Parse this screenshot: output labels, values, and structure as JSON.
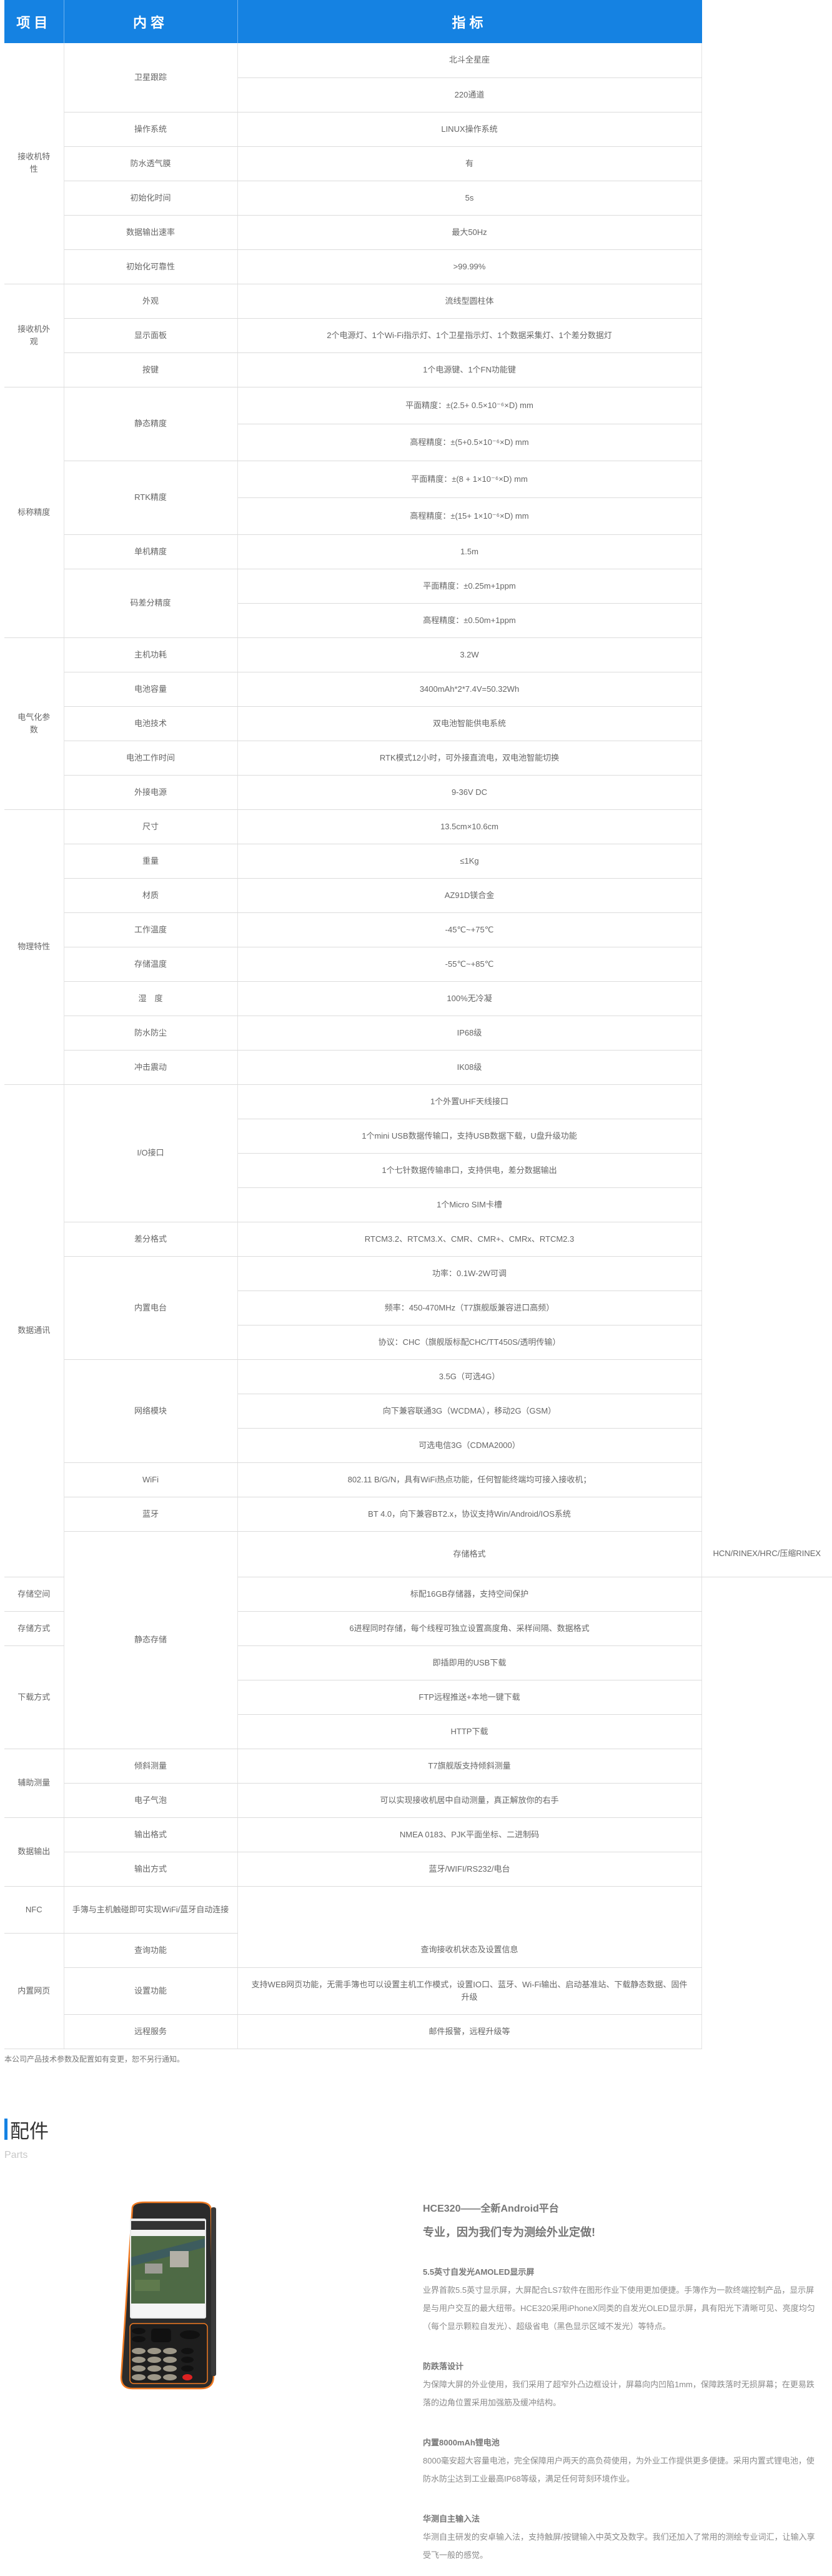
{
  "table": {
    "header": [
      "项目",
      "内容",
      "指标"
    ],
    "groups": [
      {
        "label": "接收机特性",
        "items": [
          {
            "label": "卫星跟踪",
            "values": [
              "北斗全星座",
              "220通道"
            ]
          },
          {
            "label": "操作系统",
            "values": [
              "LINUX操作系统"
            ]
          },
          {
            "label": "防水透气膜",
            "values": [
              "有"
            ]
          },
          {
            "label": "初始化时间",
            "values": [
              "5s"
            ]
          },
          {
            "label": "数据输出速率",
            "values": [
              "最大50Hz"
            ]
          },
          {
            "label": "初始化可靠性",
            "values": [
              ">99.99%"
            ]
          }
        ]
      },
      {
        "label": "接收机外观",
        "items": [
          {
            "label": "外观",
            "values": [
              "流线型圆柱体"
            ]
          },
          {
            "label": "显示面板",
            "values": [
              "2个电源灯、1个Wi-Fi指示灯、1个卫星指示灯、1个数据采集灯、1个差分数据灯"
            ]
          },
          {
            "label": "按键",
            "values": [
              "1个电源键、1个FN功能键"
            ]
          }
        ]
      },
      {
        "label": "标称精度",
        "items": [
          {
            "label": "静态精度",
            "values": [
              "平面精度：±(2.5+ 0.5×10⁻⁶×D) mm",
              "高程精度：±(5+0.5×10⁻⁶×D) mm"
            ]
          },
          {
            "label": "RTK精度",
            "values": [
              "平面精度：±(8 + 1×10⁻⁶×D) mm",
              "高程精度：±(15+ 1×10⁻⁶×D) mm"
            ]
          },
          {
            "label": "单机精度",
            "values": [
              "1.5m"
            ]
          },
          {
            "label": "码差分精度",
            "values": [
              "平面精度：±0.25m+1ppm",
              "高程精度：±0.50m+1ppm"
            ]
          }
        ]
      },
      {
        "label": "电气化参数",
        "items": [
          {
            "label": "主机功耗",
            "values": [
              "3.2W"
            ]
          },
          {
            "label": "电池容量",
            "values": [
              "3400mAh*2*7.4V=50.32Wh"
            ]
          },
          {
            "label": "电池技术",
            "values": [
              "双电池智能供电系统"
            ]
          },
          {
            "label": "电池工作时间",
            "values": [
              "RTK模式12小时，可外接直流电，双电池智能切换"
            ]
          },
          {
            "label": "外接电源",
            "values": [
              "9-36V DC"
            ]
          }
        ]
      },
      {
        "label": "物理特性",
        "items": [
          {
            "label": "尺寸",
            "values": [
              "13.5cm×10.6cm"
            ]
          },
          {
            "label": "重量",
            "values": [
              "≤1Kg"
            ]
          },
          {
            "label": "材质",
            "values": [
              "AZ91D镁合金"
            ]
          },
          {
            "label": "工作温度",
            "values": [
              "-45℃~+75℃"
            ]
          },
          {
            "label": "存储温度",
            "values": [
              "-55℃~+85℃"
            ]
          },
          {
            "label": "湿　度",
            "values": [
              "100%无冷凝"
            ]
          },
          {
            "label": "防水防尘",
            "values": [
              "IP68级"
            ]
          },
          {
            "label": "冲击震动",
            "values": [
              "IK08级"
            ]
          }
        ]
      },
      {
        "label": "数据通讯",
        "items": [
          {
            "label": "I/O接口",
            "values": [
              "1个外置UHF天线接口",
              "1个mini USB数据传输口，支持USB数据下载，U盘升级功能",
              "1个七针数据传输串口，支持供电，差分数据输出",
              "1个Micro SIM卡槽"
            ]
          },
          {
            "label": "差分格式",
            "values": [
              "RTCM3.2、RTCM3.X、CMR、CMR+、CMRx、RTCM2.3"
            ]
          },
          {
            "label": "内置电台",
            "values": [
              "功率：0.1W-2W可调",
              "频率：450-470MHz（T7旗舰版兼容进口高频）",
              "协议：CHC（旗舰版标配CHC/TT450S/透明传输）"
            ]
          },
          {
            "label": "网络模块",
            "values": [
              "3.5G（可选4G）",
              "向下兼容联通3G（WCDMA），移动2G（GSM）",
              "可选电信3G（CDMA2000）"
            ]
          },
          {
            "label": "WiFi",
            "values": [
              "802.11 B/G/N，具有WiFi热点功能，任何智能终端均可接入接收机；"
            ]
          },
          {
            "label": "蓝牙",
            "values": [
              "BT 4.0，向下兼容BT2.x，协议支持Win/Android/IOS系统"
            ]
          },
          {
            "label": "静态存储",
            "values": [
              "存储格式"
            ],
            "extra": "HCN/RINEX/HRC/压缩RINEX"
          }
        ]
      },
      {
        "label": "存储空间",
        "values": [
          "标配16GB存储器，支持空间保护"
        ]
      },
      {
        "label": "存储方式",
        "values": [
          "6进程同时存储，每个线程可独立设置高度角、采样间隔、数据格式"
        ]
      },
      {
        "label": "下载方式",
        "values": [
          "即插即用的USB下载",
          "FTP远程推送+本地一键下载",
          "HTTP下载"
        ]
      },
      {
        "label": "辅助测量",
        "items": [
          {
            "label": "倾斜测量",
            "values": [
              "T7旗舰版支持倾斜测量"
            ]
          },
          {
            "label": "电子气泡",
            "values": [
              "可以实现接收机居中自动测量，真正解放你的右手"
            ]
          }
        ]
      },
      {
        "label": "数据输出",
        "items": [
          {
            "label": "输出格式",
            "values": [
              "NMEA 0183、PJK平面坐标、二进制码"
            ]
          },
          {
            "label": "输出方式",
            "values": [
              "蓝牙/WIFI/RS232/电台"
            ]
          }
        ]
      },
      {
        "label": "NFC",
        "items": [
          {
            "label": "手簿与主机触碰即可实现WiFi/蓝牙自动连接",
            "values": [
              ""
            ]
          }
        ]
      },
      {
        "label": "内置网页",
        "items": [
          {
            "label": "查询功能",
            "values": [
              "查询接收机状态及设置信息"
            ]
          },
          {
            "label": "设置功能",
            "values": [
              "支持WEB网页功能，无需手簿也可以设置主机工作模式，设置IO口、蓝牙、Wi-Fi输出、启动基准站、下载静态数据、固件升级"
            ]
          },
          {
            "label": "远程服务",
            "values": [
              "邮件报警，远程升级等"
            ]
          }
        ]
      }
    ],
    "note": "本公司产品技术参数及配置如有变更，恕不另行通知。"
  },
  "parts": {
    "title": "配件",
    "subtitle": "Parts",
    "product_title": "HCE320——全新Android平台",
    "product_slogan": "专业，因为我们专为测绘外业定做!",
    "features": [
      {
        "heading": "5.5英寸自发光AMOLED显示屏",
        "text": "业界首款5.5英寸显示屏，大屏配合LS7软件在图形作业下使用更加便捷。手簿作为一款终端控制产品，显示屏是与用户交互的最大纽带。HCE320采用iPhoneX同类的自发光OLED显示屏，具有阳光下清晰可见、亮度均匀（每个显示颗粒自发光）、超级省电（黑色显示区域不发光）等特点。"
      },
      {
        "heading": "防跌落设计",
        "text": "为保障大屏的外业使用，我们采用了超窄外凸边框设计，屏幕向内凹陷1mm，保障跌落时无损屏幕；在更易跌落的边角位置采用加强筋及缓冲结构。"
      },
      {
        "heading": "内置8000mAh锂电池",
        "text": "8000毫安超大容量电池，完全保障用户两天的高负荷使用，为外业工作提供更多便捷。采用内置式锂电池，使防水防尘达到工业最高IP68等级，满足任何苛刻环境作业。"
      },
      {
        "heading": "华测自主输入法",
        "text": "华测自主研发的安卓输入法，支持触屏/按键输入中英文及数字。我们还加入了常用的测绘专业词汇，让输入享受飞一般的感觉。"
      }
    ],
    "phone_image": "handheld-controller-image"
  },
  "colors": {
    "header_bg": "#1582e2",
    "accent_bar": "#1582e2",
    "phone_accent": "#f07a22"
  }
}
